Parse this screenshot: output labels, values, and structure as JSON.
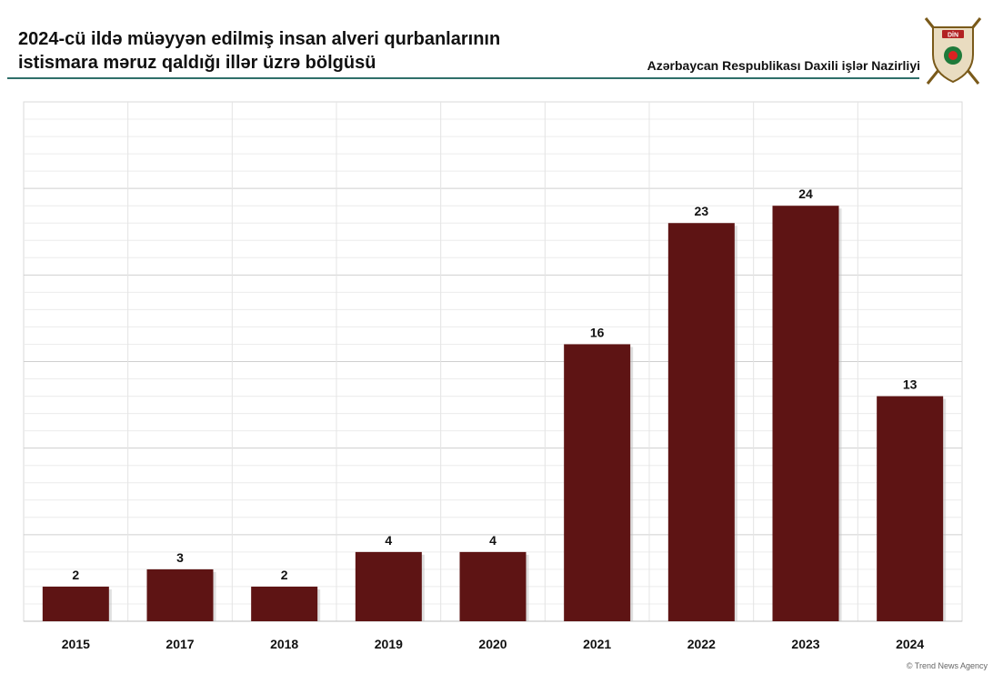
{
  "header": {
    "title_line1": "2024-cü ildə müəyyən edilmiş insan alveri qurbanlarının",
    "title_line2": "istismara məruz qaldığı illər üzrə bölgüsü",
    "agency": "Azərbaycan Respublikası Daxili işlər Nazirliyi",
    "emblem_text": "DİN",
    "emblem_icon": "ministry-emblem-icon"
  },
  "footer": {
    "credit": "© Trend News Agency"
  },
  "colors": {
    "bar": "#5e1414",
    "rule": "#2f6f6a",
    "grid": "#d9d9d9"
  },
  "chart_data": {
    "type": "bar",
    "title": "2024-cü ildə müəyyən edilmiş insan alveri qurbanlarının istismara məruz qaldığı illər üzrə bölgüsü",
    "xlabel": "",
    "ylabel": "",
    "categories": [
      "2015",
      "2017",
      "2018",
      "2019",
      "2020",
      "2021",
      "2022",
      "2023",
      "2024"
    ],
    "values": [
      2,
      3,
      2,
      4,
      4,
      16,
      23,
      24,
      13
    ],
    "ylim": [
      0,
      30
    ],
    "grid": true,
    "legend": "none",
    "data_labels": true
  }
}
